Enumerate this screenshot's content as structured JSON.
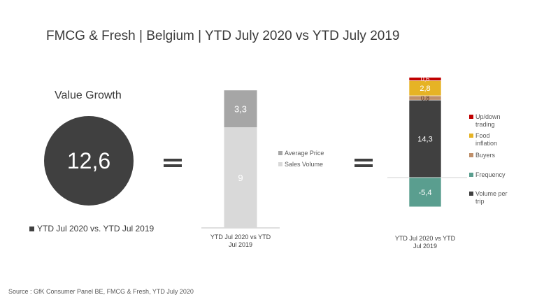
{
  "title": "FMCG & Fresh | Belgium | YTD July 2020 vs YTD July 2019",
  "source": "Source : GfK Consumer Panel BE, FMCG & Fresh, YTD July 2020",
  "value_growth": {
    "label": "Value Growth",
    "value": "12,6",
    "legend": "YTD Jul 2020 vs. YTD Jul 2019",
    "color": "#404040"
  },
  "chart_data": [
    {
      "type": "bar",
      "stacked": true,
      "categories": [
        "YTD Jul 2020 vs YTD Jul 2019"
      ],
      "series": [
        {
          "name": "Sales Volume",
          "values": [
            9
          ],
          "label": "9",
          "color": "#d9d9d9"
        },
        {
          "name": "Average Price",
          "values": [
            3.3
          ],
          "label": "3,3",
          "color": "#a6a6a6"
        }
      ],
      "legend": [
        "Average Price",
        "Sales Volume"
      ],
      "legend_position": "right"
    },
    {
      "type": "bar",
      "stacked": true,
      "categories": [
        "YTD Jul 2020 vs YTD Jul 2019"
      ],
      "series": [
        {
          "name": "Volume per trip",
          "values": [
            14.3
          ],
          "label": "14,3",
          "color": "#404040"
        },
        {
          "name": "Buyers",
          "values": [
            0.8
          ],
          "label": "0,8",
          "color": "#bf8f6a"
        },
        {
          "name": "Food inflation",
          "values": [
            2.8
          ],
          "label": "2,8",
          "color": "#e6b325"
        },
        {
          "name": "Up/down trading",
          "values": [
            0.6
          ],
          "label": "0,6",
          "color": "#c00000"
        },
        {
          "name": "Frequency",
          "values": [
            -5.4
          ],
          "label": "-5,4",
          "color": "#5a9e8f"
        }
      ],
      "legend": [
        "Up/down trading",
        "Food inflation",
        "Buyers",
        "Frequency",
        "Volume per trip"
      ],
      "legend_position": "right"
    }
  ]
}
